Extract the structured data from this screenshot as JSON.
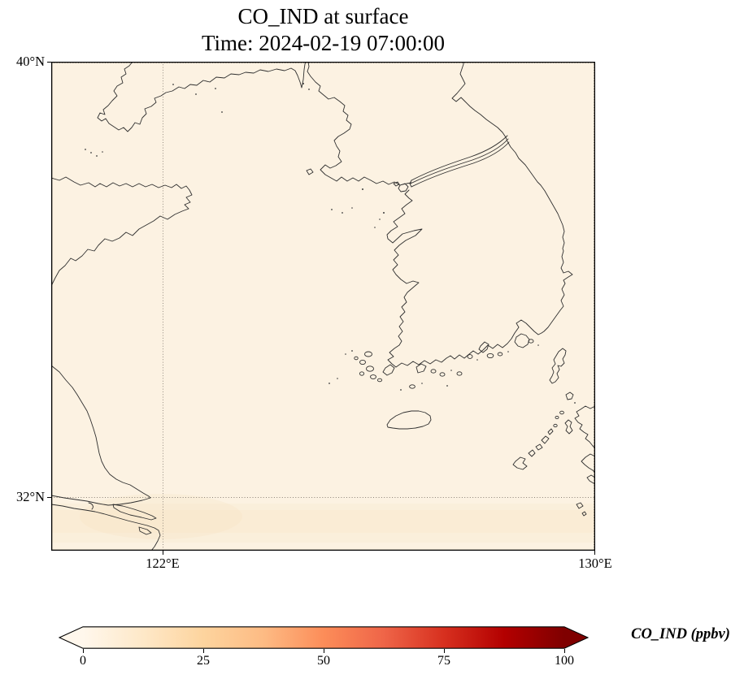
{
  "figure": {
    "title": "CO_IND at surface",
    "subtitle": "Time: 2024-02-19 07:00:00"
  },
  "map": {
    "lat_tick_top": "40°N",
    "lat_tick_bottom": "32°N",
    "lon_tick_left": "122°E",
    "lon_tick_right": "130°E"
  },
  "colorbar": {
    "label": "CO_IND (ppbv)",
    "ticks": [
      "0",
      "25",
      "50",
      "75",
      "100"
    ],
    "range_min": 0,
    "range_max": 100,
    "extend": "both",
    "colormap": "OrRd",
    "stops": [
      "#fff7ec",
      "#fee8c8",
      "#fdd49e",
      "#fdbb84",
      "#fc8d59",
      "#ef6548",
      "#d7301f",
      "#b30000",
      "#7f0000"
    ]
  },
  "colors": {
    "map_background": "#fcf2e2",
    "low_value_band": "#f5dfbc",
    "coastline": "#2f2f2f",
    "gridline": "#8a8076"
  },
  "chart_data": {
    "type": "heatmap",
    "title": "CO_IND at surface",
    "subtitle": "Time: 2024-02-19 07:00:00",
    "variable": "CO_IND",
    "units": "ppbv",
    "region": "Korean peninsula, Yellow Sea, east China coast, Kyushu (lat-lon map)",
    "lon_range": [
      120,
      130
    ],
    "lat_range": [
      31,
      40
    ],
    "x_ticks": [
      {
        "value": 122,
        "label": "122°E"
      },
      {
        "value": 130,
        "label": "130°E"
      }
    ],
    "y_ticks": [
      {
        "value": 40,
        "label": "40°N"
      },
      {
        "value": 32,
        "label": "32°N"
      }
    ],
    "gridlines": {
      "style": "dotted",
      "lons": [
        122,
        130
      ],
      "lats": [
        32,
        40
      ]
    },
    "colorbar": {
      "orientation": "horizontal",
      "ticks": [
        0,
        25,
        50,
        75,
        100
      ],
      "colormap": "OrRd",
      "extend": "both",
      "label": "CO_IND (ppbv)"
    },
    "field_summary": "CO_IND concentration nearly uniform and very low (~0-5 ppbv, pale cream fill) over the whole domain; faint slightly-elevated band near 31.5°N along the bottom of the map"
  }
}
